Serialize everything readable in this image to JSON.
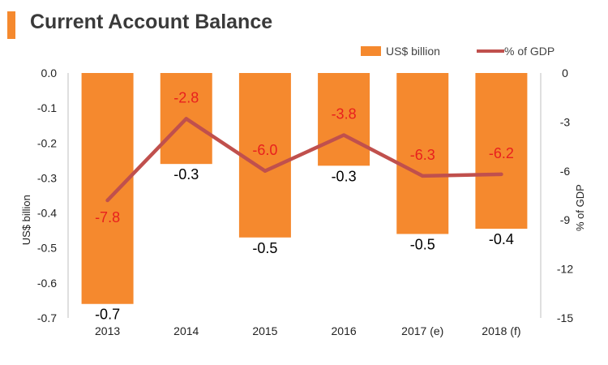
{
  "header": {
    "title": "Current Account Balance"
  },
  "colors": {
    "accent": "#f5892e",
    "bar": "#f5892e",
    "line": "#c0504d",
    "pct_label": "#e8201e"
  },
  "chart_data": {
    "type": "bar",
    "title": "",
    "categories": [
      "2013",
      "2014",
      "2015",
      "2016",
      "2017 (e)",
      "2018 (f)"
    ],
    "series": [
      {
        "name": "US$ billion",
        "type": "bar",
        "axis": "left",
        "values": [
          -0.66,
          -0.26,
          -0.47,
          -0.265,
          -0.46,
          -0.445
        ],
        "labels": [
          "-0.7",
          "-0.3",
          "-0.5",
          "-0.3",
          "-0.5",
          "-0.4"
        ]
      },
      {
        "name": "% of GDP",
        "type": "line",
        "axis": "right",
        "values": [
          -7.8,
          -2.8,
          -6.0,
          -3.8,
          -6.3,
          -6.2
        ],
        "labels": [
          "-7.8",
          "-2.8",
          "-6.0",
          "-3.8",
          "-6.3",
          "-6.2"
        ]
      }
    ],
    "y_left": {
      "label": "US$ billion",
      "ylim": [
        -0.7,
        0.0
      ],
      "ticks": [
        "0.0",
        "-0.1",
        "-0.2",
        "-0.3",
        "-0.4",
        "-0.5",
        "-0.6",
        "-0.7"
      ],
      "tick_values": [
        0.0,
        -0.1,
        -0.2,
        -0.3,
        -0.4,
        -0.5,
        -0.6,
        -0.7
      ]
    },
    "y_right": {
      "label": "% of GDP",
      "ylim": [
        -15,
        0
      ],
      "ticks": [
        "0",
        "-3",
        "-6",
        "-9",
        "-12",
        "-15"
      ],
      "tick_values": [
        0,
        -3,
        -6,
        -9,
        -12,
        -15
      ]
    },
    "grid": false,
    "legend_position": "top-right"
  }
}
